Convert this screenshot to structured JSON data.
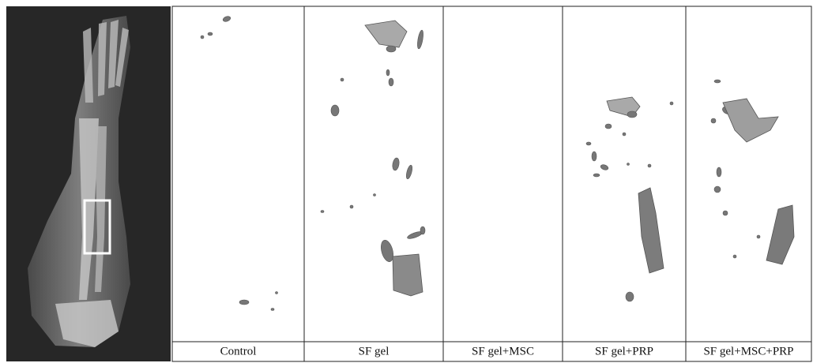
{
  "panels": [
    {
      "label": "Control"
    },
    {
      "label": "SF gel"
    },
    {
      "label": "SF gel+MSC"
    },
    {
      "label": "SF gel+PRP"
    },
    {
      "label": "SF gel+MSC+PRP"
    }
  ]
}
